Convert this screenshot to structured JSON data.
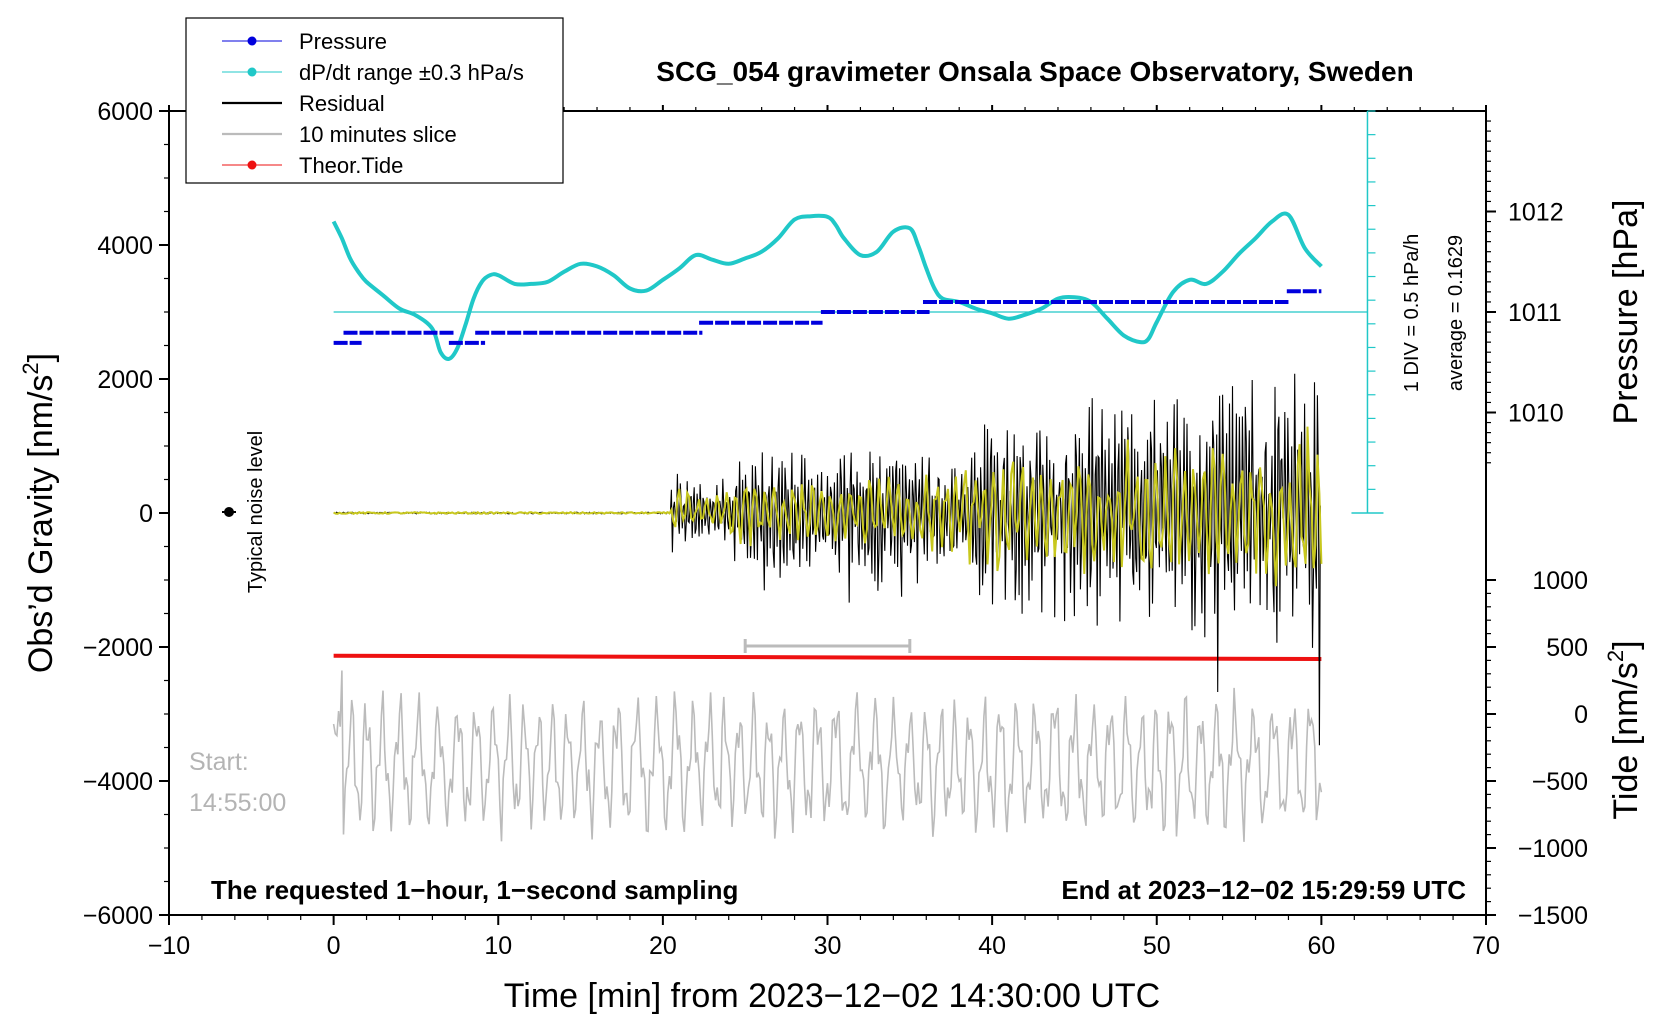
{
  "chart_data": {
    "type": "line",
    "title": "SCG_054 gravimeter Onsala Space Observatory, Sweden",
    "xlabel": "Time [min] from 2023−12−02 14:30:00 UTC",
    "ylabel_prefix": "Obs’d Gravity [nm/s",
    "ylabel_sup": "2",
    "ylabel_suffix": "]",
    "xlim": [
      -10,
      70
    ],
    "ylim": [
      -6000,
      6000
    ],
    "x_ticks": [
      -10,
      0,
      10,
      20,
      30,
      40,
      50,
      60,
      70
    ],
    "x_tick_labels": [
      "−10",
      "0",
      "10",
      "20",
      "30",
      "40",
      "50",
      "60",
      "70"
    ],
    "y_ticks": [
      -6000,
      -4000,
      -2000,
      0,
      2000,
      4000,
      6000
    ],
    "y_tick_labels": [
      "−6000",
      "−4000",
      "−2000",
      "0",
      "2000",
      "4000",
      "6000"
    ],
    "pressure_axis": {
      "label": "Pressure [hPa]",
      "ticks": [
        1010,
        1011,
        1012
      ],
      "tick_labels": [
        "1010",
        "1011",
        "1012"
      ],
      "gravity_at_1011": 3000,
      "gravity_per_hpa": 1500
    },
    "tide_axis": {
      "label_prefix": "Tide [nm/s",
      "label_sup": "2",
      "label_suffix": "]",
      "ticks": [
        -1500,
        -1000,
        -500,
        0,
        500,
        1000
      ],
      "tick_labels": [
        "−1500",
        "−1000",
        "−500",
        "0",
        "500",
        "1000"
      ],
      "gravity_at_0": -3000,
      "gravity_per_unit": 2
    },
    "legend": {
      "placement": "top-left",
      "entries": [
        {
          "label": "Pressure",
          "color": "#0000dd",
          "marker": true
        },
        {
          "label": "dP/dt range ±0.3 hPa/s",
          "color": "#20c8c8",
          "marker": true
        },
        {
          "label": "Residual",
          "color": "#000000",
          "marker": false
        },
        {
          "label": "10 minutes slice",
          "color": "#bbbbbb",
          "marker": false
        },
        {
          "label": "Theor.Tide",
          "color": "#ee1111",
          "marker": true
        }
      ]
    },
    "scale_bar": {
      "label1": "1 DIV = 0.5 hPa/h",
      "label2": "average = 0.1629",
      "x": 62.8,
      "y_bottom": 0,
      "y_top": 6000,
      "divisions": 17
    },
    "noise_marker": {
      "x": -7,
      "y": 0,
      "label": "Typical noise level"
    },
    "start_label": "Start:",
    "start_time": "14:55:00",
    "footer_left": "The requested 1−hour, 1−second sampling",
    "footer_right": "End at 2023−12−02 15:29:59 UTC",
    "slice_bracket": {
      "x_start": 25,
      "x_end": 35,
      "y": -2000
    },
    "series": [
      {
        "name": "dP/dt",
        "color": "#20c8c8",
        "x": [
          0,
          0.5,
          1,
          1.5,
          2,
          3,
          4,
          5,
          6,
          6.5,
          7,
          7.5,
          8,
          8.5,
          9,
          9.5,
          10,
          11,
          12,
          13,
          14,
          15,
          16,
          17,
          18,
          19,
          20,
          21,
          22,
          23,
          24,
          25,
          26,
          27,
          28,
          29,
          30,
          30.5,
          31,
          32,
          33,
          34,
          35,
          35.5,
          36,
          36.5,
          37,
          38,
          39,
          40,
          41,
          42,
          43,
          44,
          45,
          46,
          47,
          48,
          49,
          49.5,
          50,
          51,
          52,
          53,
          54,
          55,
          56,
          57,
          58,
          59,
          60
        ],
        "values": [
          4350,
          4100,
          3800,
          3600,
          3450,
          3250,
          3050,
          2950,
          2750,
          2400,
          2300,
          2450,
          2800,
          3200,
          3450,
          3550,
          3550,
          3420,
          3420,
          3450,
          3600,
          3720,
          3680,
          3550,
          3350,
          3320,
          3480,
          3650,
          3850,
          3780,
          3720,
          3800,
          3900,
          4100,
          4380,
          4430,
          4420,
          4300,
          4100,
          3850,
          3900,
          4200,
          4250,
          4000,
          3650,
          3350,
          3200,
          3150,
          3050,
          2980,
          2900,
          2960,
          3050,
          3200,
          3220,
          3150,
          2900,
          2650,
          2550,
          2600,
          2850,
          3300,
          3480,
          3420,
          3600,
          3870,
          4100,
          4350,
          4450,
          3950,
          3680
        ]
      },
      {
        "name": "Pressure",
        "color": "#0000dd",
        "segments": [
          {
            "x": [
              0,
              1.7
            ],
            "value": 2540
          },
          {
            "x": [
              0.6,
              7.3
            ],
            "value": 2690
          },
          {
            "x": [
              7.0,
              9.2
            ],
            "value": 2540
          },
          {
            "x": [
              8.6,
              22.4
            ],
            "value": 2690
          },
          {
            "x": [
              22.2,
              29.7
            ],
            "value": 2840
          },
          {
            "x": [
              29.6,
              36.2
            ],
            "value": 3000
          },
          {
            "x": [
              35.8,
              58.0
            ],
            "value": 3150
          },
          {
            "x": [
              57.9,
              60.0
            ],
            "value": 3310
          }
        ]
      },
      {
        "name": "Residual",
        "color": "#000000",
        "quiet_until": 20.5,
        "amplitude_envelope": [
          [
            20.5,
            700
          ],
          [
            23,
            350
          ],
          [
            25,
            900
          ],
          [
            30,
            800
          ],
          [
            35,
            1000
          ],
          [
            38,
            600
          ],
          [
            40,
            1300
          ],
          [
            45,
            1500
          ],
          [
            50,
            1500
          ],
          [
            55,
            1700
          ],
          [
            60,
            1900
          ]
        ]
      },
      {
        "name": "Residual (filtered)",
        "color": "#c8c81e",
        "quiet_until": 20.5,
        "amplitude_envelope": [
          [
            20.5,
            350
          ],
          [
            23,
            200
          ],
          [
            25,
            450
          ],
          [
            30,
            400
          ],
          [
            35,
            500
          ],
          [
            40,
            700
          ],
          [
            45,
            800
          ],
          [
            50,
            800
          ],
          [
            55,
            900
          ],
          [
            60,
            1000
          ]
        ]
      },
      {
        "name": "Theor.Tide",
        "color": "#ee1111",
        "x": [
          0,
          60
        ],
        "values": [
          -2130,
          -2180
        ]
      },
      {
        "name": "10 minutes slice",
        "color": "#bbbbbb",
        "x_range": [
          0,
          60
        ],
        "mean": -3750,
        "min": -4950,
        "max": -2350
      }
    ]
  }
}
